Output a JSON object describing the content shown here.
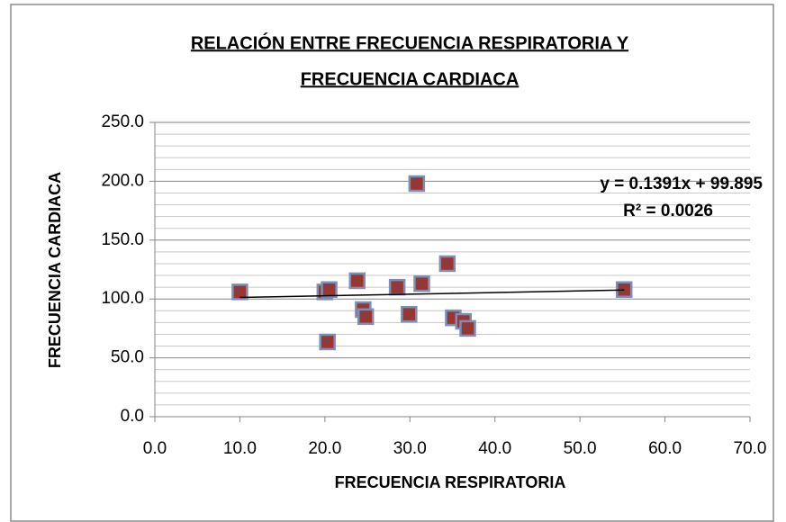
{
  "chart_data": {
    "type": "scatter",
    "title": [
      "RELACIÓN ENTRE FRECUENCIA RESPIRATORIA Y",
      "FRECUENCIA CARDIACA"
    ],
    "xlabel": "FRECUENCIA RESPIRATORIA",
    "ylabel": "FRECUENCIA CARDIACA",
    "series": [
      {
        "color": "#953735",
        "x": [
          10,
          20,
          20.5,
          20.3,
          23.8,
          24.5,
          24.8,
          28.5,
          29.9,
          30.8,
          31.4,
          34.4,
          35.1,
          36.3,
          36.8,
          55.2
        ],
        "values": [
          106,
          106,
          108,
          63.5,
          115.5,
          91,
          85,
          110,
          87,
          198,
          113,
          130,
          84,
          81,
          75,
          108
        ]
      }
    ],
    "trendline": {
      "label": "y = 0.1391x + 99.895",
      "r2_label": "R² = 0.0026",
      "slope": 0.1391,
      "intercept": 99.895
    },
    "xlim": [
      0,
      70
    ],
    "xticks": [
      {
        "value": 0,
        "label": "0.0"
      },
      {
        "value": 10,
        "label": "10.0"
      },
      {
        "value": 20,
        "label": "20.0"
      },
      {
        "value": 30,
        "label": "30.0"
      },
      {
        "value": 40,
        "label": "40.0"
      },
      {
        "value": 50,
        "label": "50.0"
      },
      {
        "value": 60,
        "label": "60.0"
      },
      {
        "value": 70,
        "label": "70.0"
      }
    ],
    "ylim": [
      0,
      250
    ],
    "yticks": [
      {
        "value": 0,
        "label": "0.0"
      },
      {
        "value": 50,
        "label": "50.0"
      },
      {
        "value": 100,
        "label": "100.0"
      },
      {
        "value": 150,
        "label": "150.0"
      },
      {
        "value": 200,
        "label": "200.0"
      },
      {
        "value": 250,
        "label": "250.0"
      }
    ],
    "yminor_ticks": [
      10,
      20,
      30,
      40,
      60,
      70,
      80,
      90,
      110,
      120,
      130,
      140,
      160,
      170,
      180,
      190,
      210,
      220,
      230,
      240
    ],
    "grid": true
  }
}
